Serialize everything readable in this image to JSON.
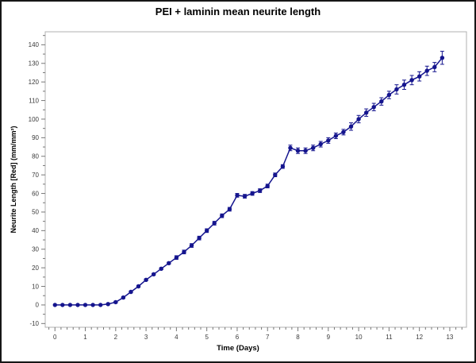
{
  "window": {
    "background": "#ffffff",
    "border_color": "#161616"
  },
  "title": "PEI + laminin mean neurite length",
  "chart_data": {
    "type": "line",
    "title": "PEI + laminin mean neurite length",
    "xlabel": "Time (Days)",
    "ylabel": "Neurite Length [Red] (mm/mm²)",
    "xlim": [
      -0.32,
      13.55
    ],
    "ylim": [
      -12,
      147
    ],
    "x_ticks": [
      0,
      1,
      2,
      3,
      4,
      5,
      6,
      7,
      8,
      9,
      10,
      11,
      12,
      13
    ],
    "y_ticks": [
      -10,
      0,
      10,
      20,
      30,
      40,
      50,
      60,
      70,
      80,
      90,
      100,
      110,
      120,
      130,
      140
    ],
    "x_minor_step": 0.2,
    "y_minor_step": 5,
    "grid": false,
    "legend_position": "none",
    "frame_color": "#b0b0b0",
    "tick_color": "#777777",
    "tick_label_color": "#3a3a3a",
    "series": [
      {
        "name": "PEI + laminin mean neurite length",
        "color": "#15158e",
        "marker": "circle",
        "marker_size": 2.7,
        "x": [
          0,
          0.25,
          0.5,
          0.75,
          1,
          1.25,
          1.5,
          1.75,
          2,
          2.25,
          2.5,
          2.75,
          3,
          3.25,
          3.5,
          3.75,
          4,
          4.25,
          4.5,
          4.75,
          5,
          5.25,
          5.5,
          5.75,
          6,
          6.25,
          6.5,
          6.75,
          7,
          7.25,
          7.5,
          7.75,
          8,
          8.25,
          8.5,
          8.75,
          9,
          9.25,
          9.5,
          9.75,
          10,
          10.25,
          10.5,
          10.75,
          11,
          11.25,
          11.5,
          11.75,
          12,
          12.25,
          12.5,
          12.75
        ],
        "y": [
          0,
          0,
          0,
          0,
          0,
          0,
          0,
          0.5,
          1.5,
          4,
          7,
          10,
          13.5,
          16.5,
          19.5,
          22.5,
          25.5,
          28.5,
          32,
          36,
          40,
          44,
          48,
          51.5,
          59,
          58.5,
          60,
          61.5,
          64,
          70,
          74.5,
          84.5,
          83,
          83,
          84.5,
          86.5,
          88.5,
          91,
          93,
          96,
          100,
          103.5,
          106.5,
          109.5,
          113,
          116,
          118.5,
          121,
          123,
          126,
          128,
          133
        ],
        "yerr": [
          0,
          0,
          0,
          0,
          0,
          0,
          0,
          0,
          0.5,
          0.5,
          0.5,
          0.5,
          0.5,
          0.5,
          0.5,
          0.5,
          1,
          1,
          1,
          1,
          1,
          1,
          1,
          1,
          1,
          1,
          1,
          1,
          1,
          1,
          1,
          1.5,
          1.5,
          1.5,
          1.5,
          1.5,
          1.5,
          1.5,
          1.5,
          2,
          2,
          2,
          2,
          2,
          2,
          2.5,
          2.5,
          2.5,
          2.5,
          2.5,
          2.5,
          3.5
        ]
      }
    ]
  }
}
